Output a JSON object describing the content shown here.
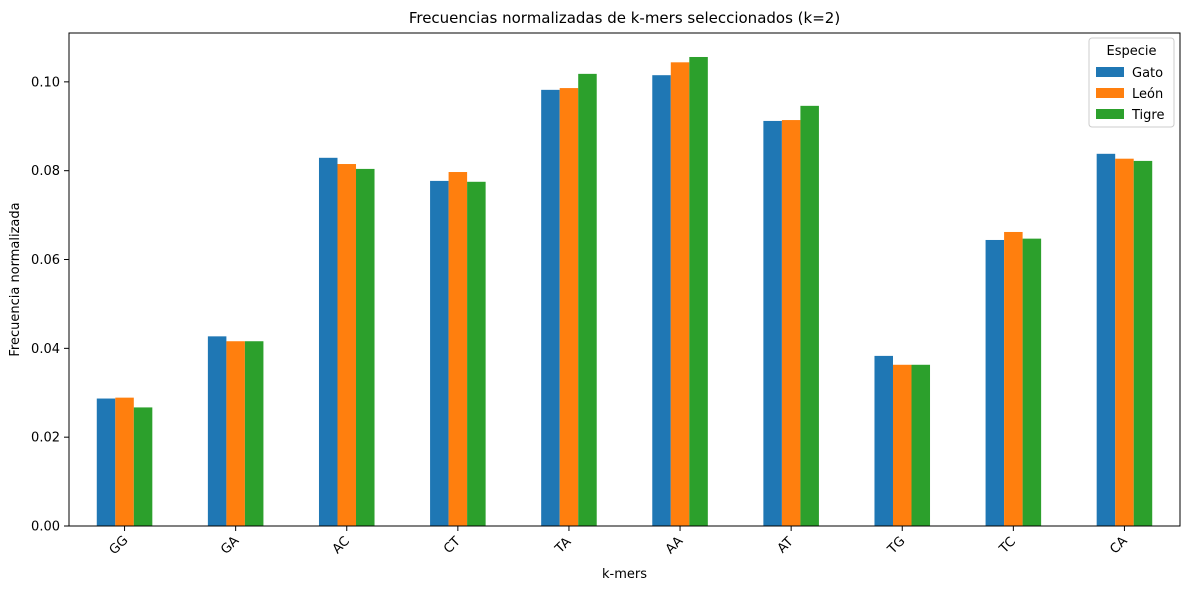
{
  "chart_data": {
    "type": "bar",
    "title": "Frecuencias normalizadas de k-mers seleccionados (k=2)",
    "xlabel": "k-mers",
    "ylabel": "Frecuencia normalizada",
    "categories": [
      "GG",
      "GA",
      "AC",
      "CT",
      "TA",
      "AA",
      "AT",
      "TG",
      "TC",
      "CA"
    ],
    "series": [
      {
        "name": "Gato",
        "color": "#1f77b4",
        "values": [
          0.0287,
          0.0427,
          0.0829,
          0.0777,
          0.0982,
          0.1015,
          0.0912,
          0.0383,
          0.0644,
          0.0838
        ]
      },
      {
        "name": "León",
        "color": "#ff7f0e",
        "values": [
          0.0289,
          0.0416,
          0.0815,
          0.0797,
          0.0986,
          0.1044,
          0.0914,
          0.0363,
          0.0662,
          0.0827
        ]
      },
      {
        "name": "Tigre",
        "color": "#2ca02c",
        "values": [
          0.0267,
          0.0416,
          0.0804,
          0.0775,
          0.1018,
          0.1056,
          0.0946,
          0.0363,
          0.0647,
          0.0822
        ]
      }
    ],
    "ylim": [
      0,
      0.111
    ],
    "yticks": [
      "0.00",
      "0.02",
      "0.04",
      "0.06",
      "0.08",
      "0.10"
    ],
    "legend_title": "Especie",
    "legend_position": "top-right",
    "grid": false
  }
}
